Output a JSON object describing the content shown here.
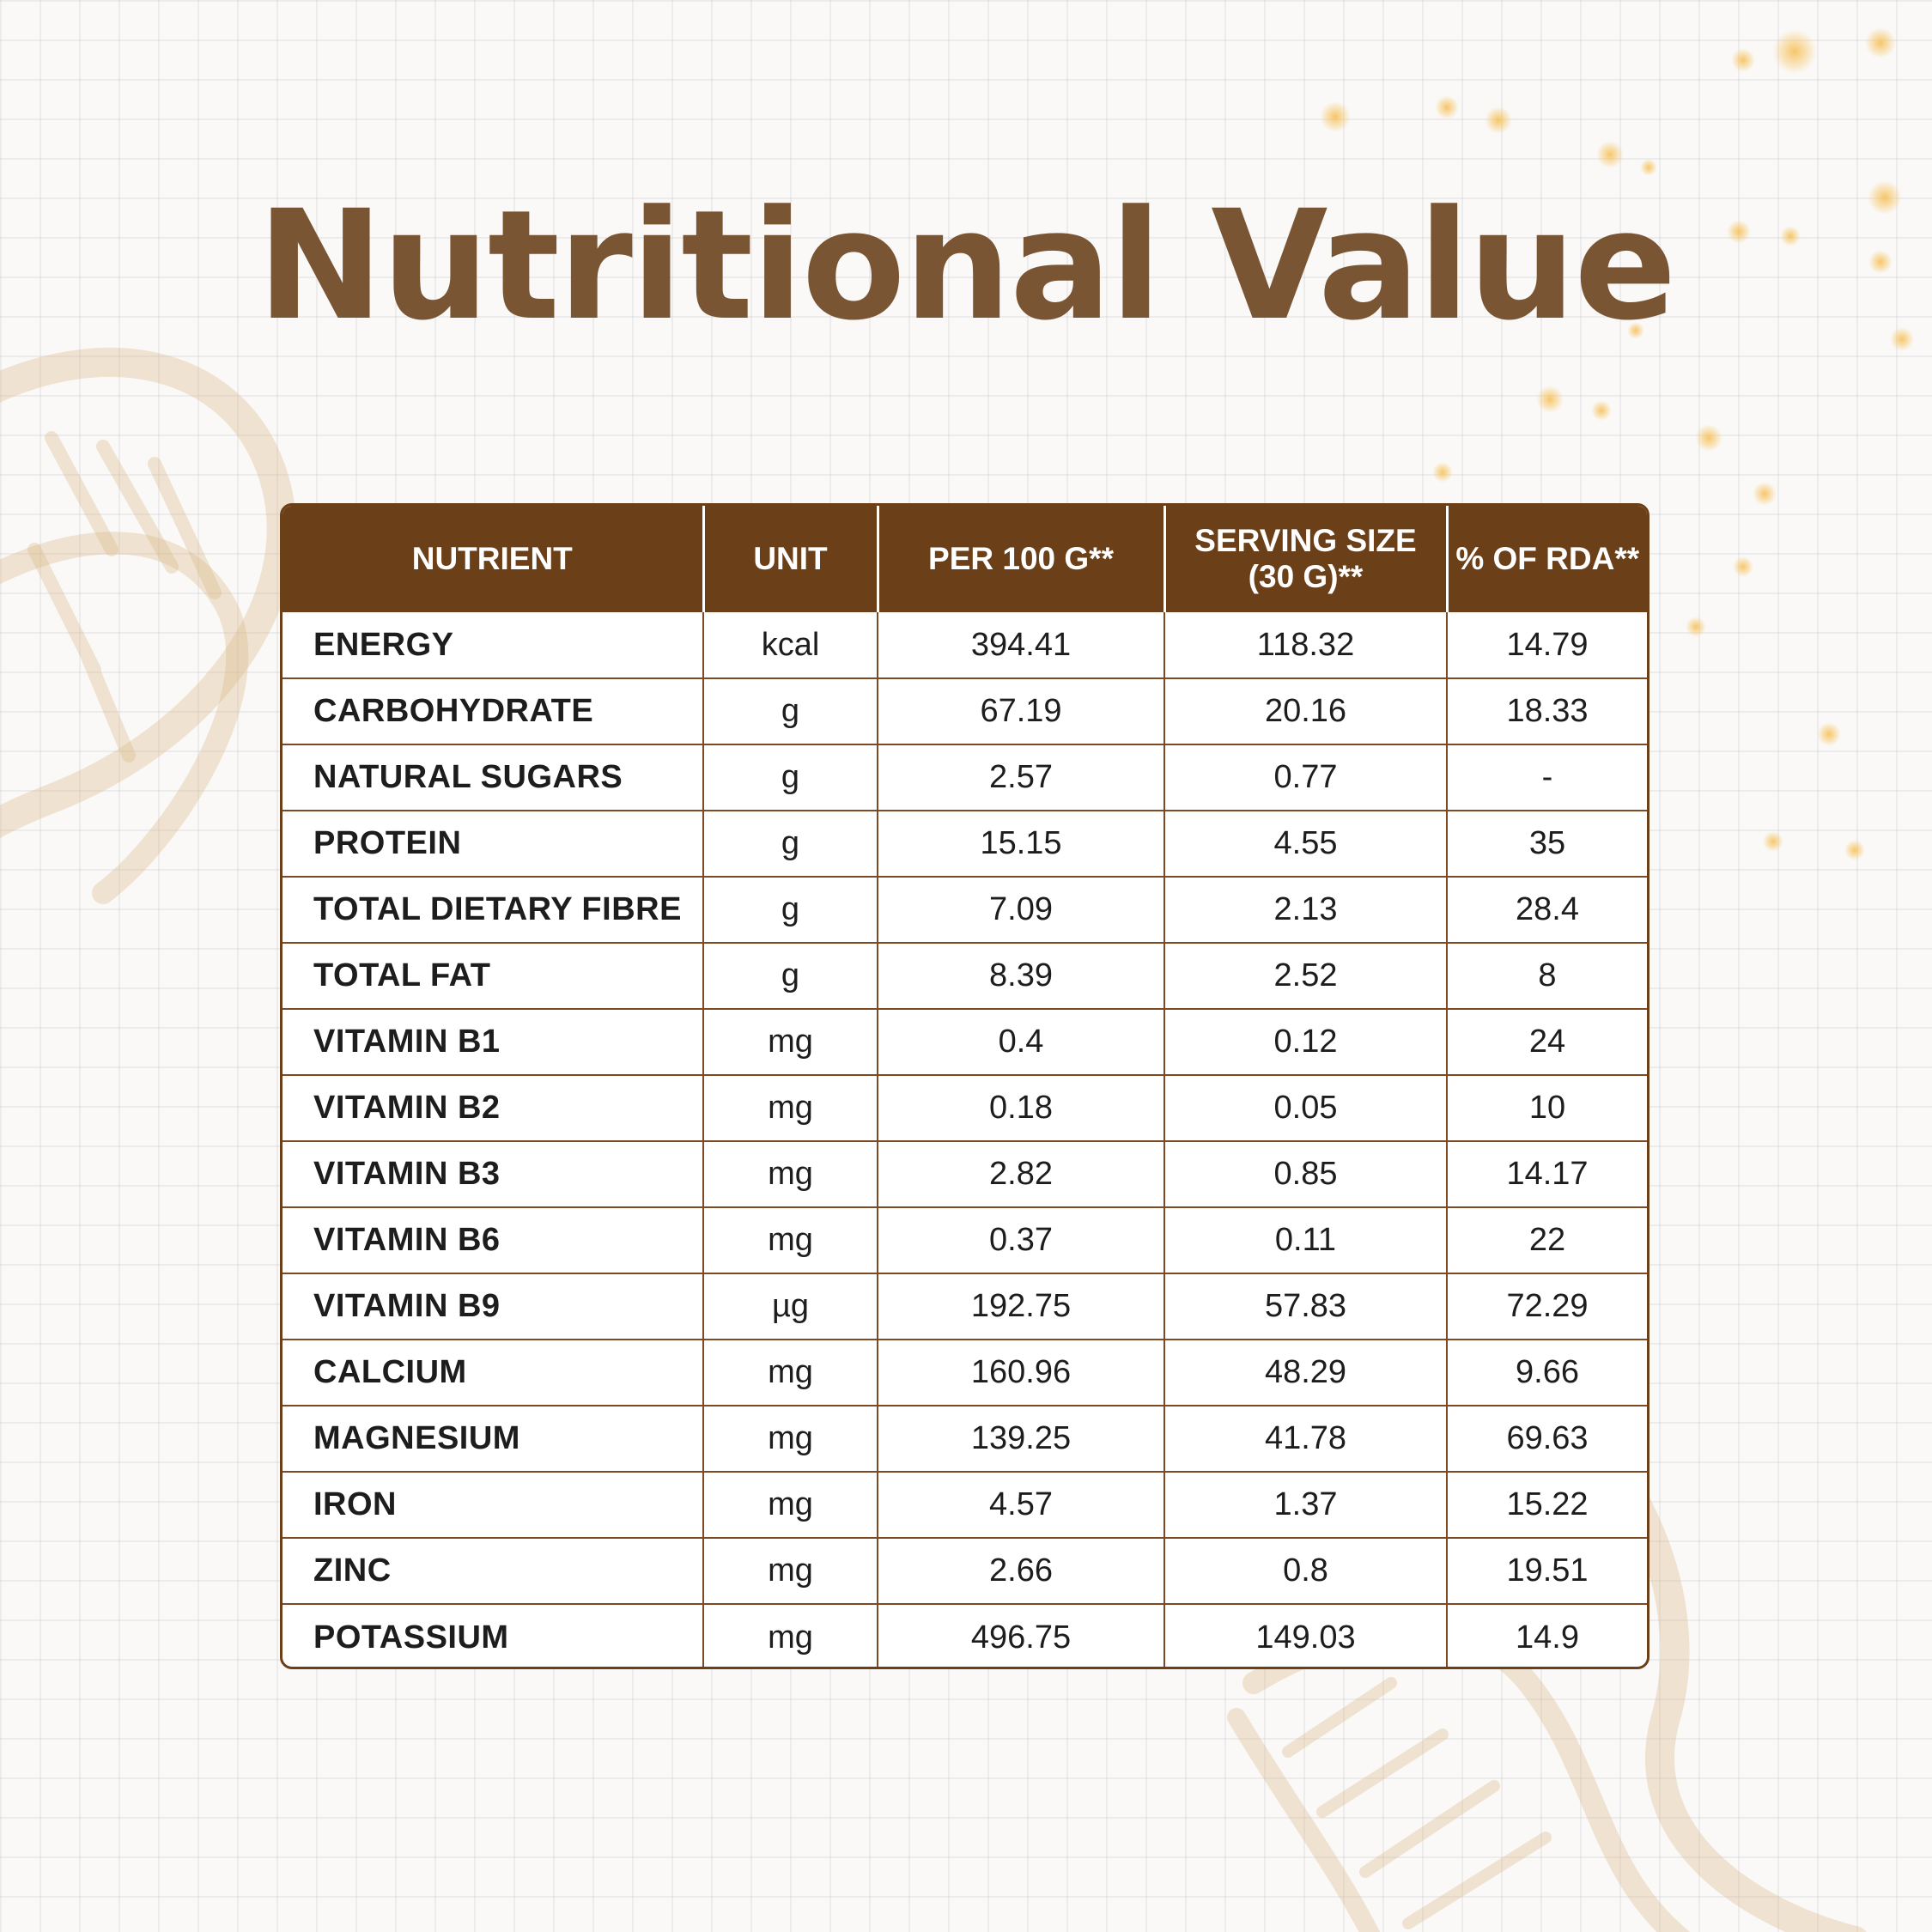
{
  "page": {
    "title": "Nutritional Value",
    "colors": {
      "accent": "#6b3f17",
      "title": "#7a5533",
      "background": "#faf9f7"
    }
  },
  "table": {
    "headers": {
      "nutrient": "NUTRIENT",
      "unit": "UNIT",
      "per100": "PER 100 G**",
      "serving_line1": "SERVING SIZE",
      "serving_line2": "(30 G)**",
      "rda": "% OF RDA**"
    },
    "rows": [
      {
        "nutrient": "ENERGY",
        "unit": "kcal",
        "per100": "394.41",
        "serving": "118.32",
        "rda": "14.79"
      },
      {
        "nutrient": "CARBOHYDRATE",
        "unit": "g",
        "per100": "67.19",
        "serving": "20.16",
        "rda": "18.33"
      },
      {
        "nutrient": "NATURAL SUGARS",
        "unit": "g",
        "per100": "2.57",
        "serving": "0.77",
        "rda": "-"
      },
      {
        "nutrient": "PROTEIN",
        "unit": "g",
        "per100": "15.15",
        "serving": "4.55",
        "rda": "35"
      },
      {
        "nutrient": "TOTAL DIETARY FIBRE",
        "unit": "g",
        "per100": "7.09",
        "serving": "2.13",
        "rda": "28.4"
      },
      {
        "nutrient": "TOTAL FAT",
        "unit": "g",
        "per100": "8.39",
        "serving": "2.52",
        "rda": "8"
      },
      {
        "nutrient": "VITAMIN B1",
        "unit": "mg",
        "per100": "0.4",
        "serving": "0.12",
        "rda": "24"
      },
      {
        "nutrient": "VITAMIN B2",
        "unit": "mg",
        "per100": "0.18",
        "serving": "0.05",
        "rda": "10"
      },
      {
        "nutrient": "VITAMIN B3",
        "unit": "mg",
        "per100": "2.82",
        "serving": "0.85",
        "rda": "14.17"
      },
      {
        "nutrient": "VITAMIN B6",
        "unit": "mg",
        "per100": "0.37",
        "serving": "0.11",
        "rda": "22"
      },
      {
        "nutrient": "VITAMIN B9",
        "unit": "µg",
        "per100": "192.75",
        "serving": "57.83",
        "rda": "72.29"
      },
      {
        "nutrient": "CALCIUM",
        "unit": "mg",
        "per100": "160.96",
        "serving": "48.29",
        "rda": "9.66"
      },
      {
        "nutrient": "MAGNESIUM",
        "unit": "mg",
        "per100": "139.25",
        "serving": "41.78",
        "rda": "69.63"
      },
      {
        "nutrient": "IRON",
        "unit": "mg",
        "per100": "4.57",
        "serving": "1.37",
        "rda": "15.22"
      },
      {
        "nutrient": "ZINC",
        "unit": "mg",
        "per100": "2.66",
        "serving": "0.8",
        "rda": "19.51"
      },
      {
        "nutrient": "POTASSIUM",
        "unit": "mg",
        "per100": "496.75",
        "serving": "149.03",
        "rda": "14.9"
      }
    ]
  },
  "decorations": {
    "left_art": "dna-helix-icon",
    "bottom_right_art": "dna-helix-icon",
    "top_right_art": "sparkle-icon"
  }
}
